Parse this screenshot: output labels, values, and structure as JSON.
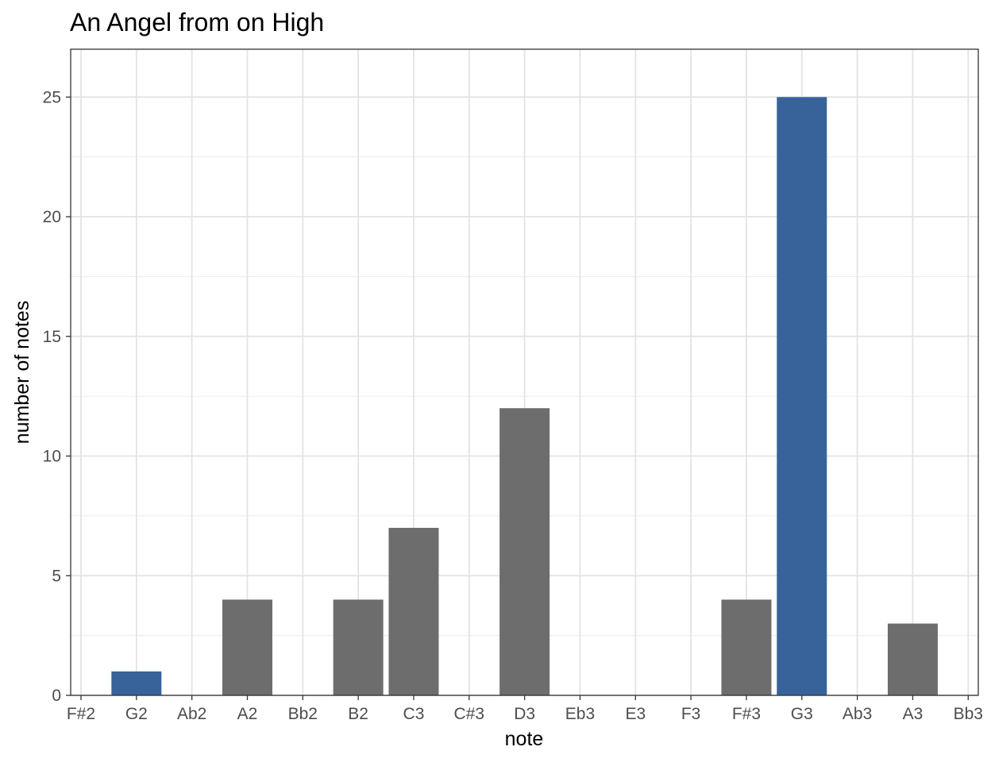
{
  "chart_data": {
    "type": "bar",
    "title": "An Angel from on High",
    "xlabel": "note",
    "ylabel": "number of notes",
    "categories": [
      "F#2",
      "G2",
      "Ab2",
      "A2",
      "Bb2",
      "B2",
      "C3",
      "C#3",
      "D3",
      "Eb3",
      "E3",
      "F3",
      "F#3",
      "G3",
      "Ab3",
      "A3",
      "Bb3"
    ],
    "values": [
      0,
      1,
      0,
      4,
      0,
      4,
      7,
      0,
      12,
      0,
      0,
      0,
      4,
      25,
      0,
      3,
      0
    ],
    "highlighted": [
      "G2",
      "G3"
    ],
    "colors": {
      "highlight": "#37639a",
      "default": "#6d6d6d"
    },
    "ylim": [
      0,
      27
    ],
    "yticks": [
      0,
      5,
      10,
      15,
      20,
      25
    ],
    "grid": true,
    "legend": "none"
  }
}
